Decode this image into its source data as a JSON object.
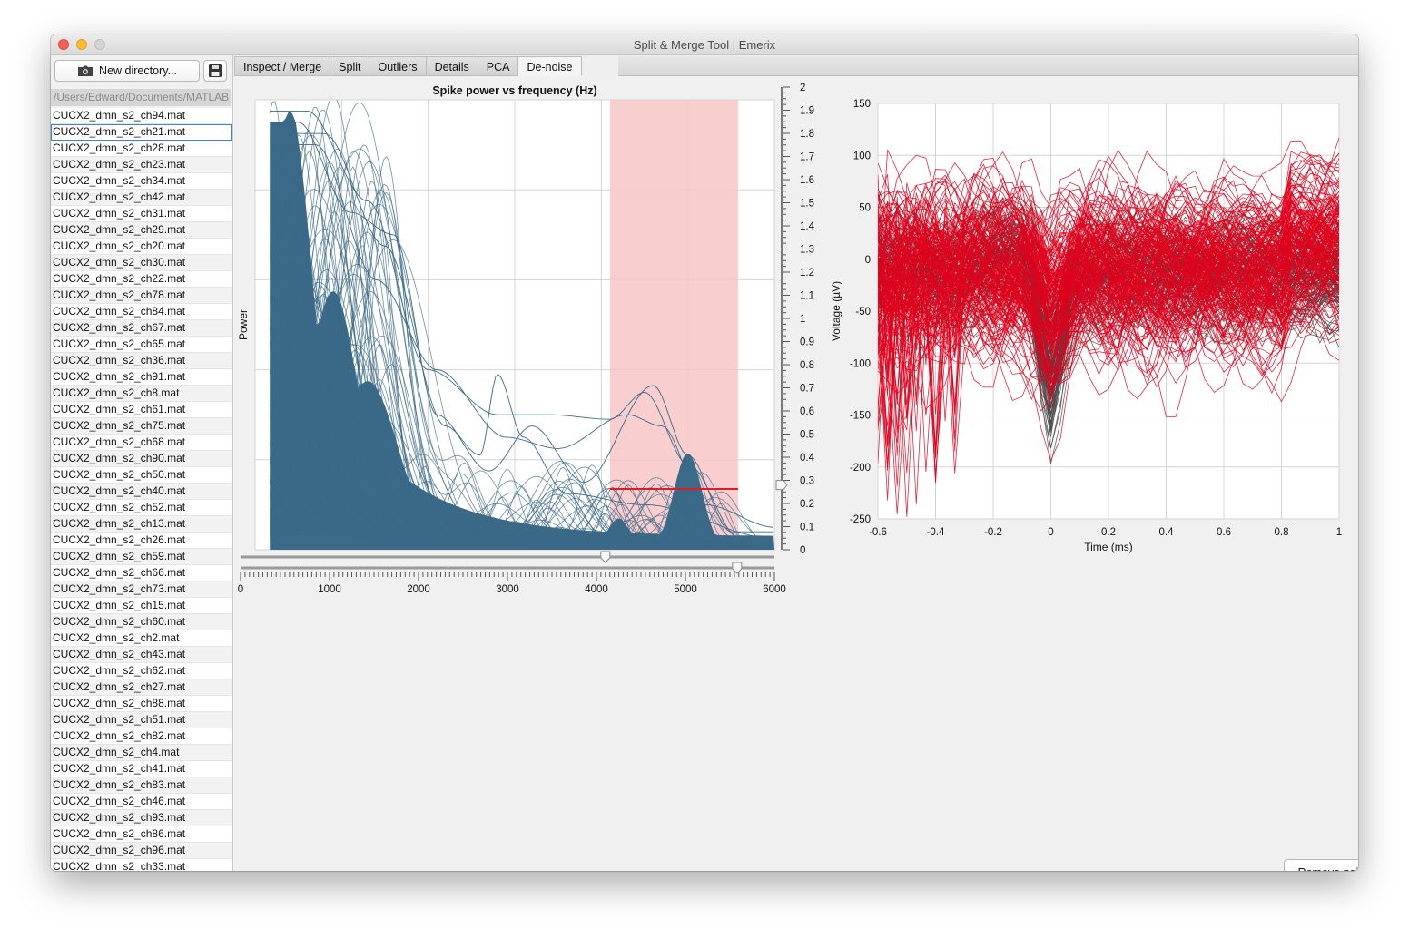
{
  "window": {
    "title": "Split & Merge Tool | Emerix"
  },
  "sidebar": {
    "new_directory_label": "New directory...",
    "save_icon": "floppy-disk-icon",
    "path": "/Users/Edward/Documents/MATLAB",
    "files": [
      "CUCX2_dmn_s2_ch94.mat",
      "CUCX2_dmn_s2_ch21.mat",
      "CUCX2_dmn_s2_ch28.mat",
      "CUCX2_dmn_s2_ch23.mat",
      "CUCX2_dmn_s2_ch34.mat",
      "CUCX2_dmn_s2_ch42.mat",
      "CUCX2_dmn_s2_ch31.mat",
      "CUCX2_dmn_s2_ch29.mat",
      "CUCX2_dmn_s2_ch20.mat",
      "CUCX2_dmn_s2_ch30.mat",
      "CUCX2_dmn_s2_ch22.mat",
      "CUCX2_dmn_s2_ch78.mat",
      "CUCX2_dmn_s2_ch84.mat",
      "CUCX2_dmn_s2_ch67.mat",
      "CUCX2_dmn_s2_ch65.mat",
      "CUCX2_dmn_s2_ch36.mat",
      "CUCX2_dmn_s2_ch91.mat",
      "CUCX2_dmn_s2_ch8.mat",
      "CUCX2_dmn_s2_ch61.mat",
      "CUCX2_dmn_s2_ch75.mat",
      "CUCX2_dmn_s2_ch68.mat",
      "CUCX2_dmn_s2_ch90.mat",
      "CUCX2_dmn_s2_ch50.mat",
      "CUCX2_dmn_s2_ch40.mat",
      "CUCX2_dmn_s2_ch52.mat",
      "CUCX2_dmn_s2_ch13.mat",
      "CUCX2_dmn_s2_ch26.mat",
      "CUCX2_dmn_s2_ch59.mat",
      "CUCX2_dmn_s2_ch66.mat",
      "CUCX2_dmn_s2_ch73.mat",
      "CUCX2_dmn_s2_ch15.mat",
      "CUCX2_dmn_s2_ch60.mat",
      "CUCX2_dmn_s2_ch2.mat",
      "CUCX2_dmn_s2_ch43.mat",
      "CUCX2_dmn_s2_ch62.mat",
      "CUCX2_dmn_s2_ch27.mat",
      "CUCX2_dmn_s2_ch88.mat",
      "CUCX2_dmn_s2_ch51.mat",
      "CUCX2_dmn_s2_ch82.mat",
      "CUCX2_dmn_s2_ch4.mat",
      "CUCX2_dmn_s2_ch41.mat",
      "CUCX2_dmn_s2_ch83.mat",
      "CUCX2_dmn_s2_ch46.mat",
      "CUCX2_dmn_s2_ch93.mat",
      "CUCX2_dmn_s2_ch86.mat",
      "CUCX2_dmn_s2_ch96.mat",
      "CUCX2_dmn_s2_ch33.mat"
    ],
    "selected_index": 1
  },
  "tabs": [
    "Inspect / Merge",
    "Split",
    "Outliers",
    "Details",
    "PCA",
    "De-noise"
  ],
  "active_tab": "De-noise",
  "action_button_label": "Remove noise and re-calculate clusters",
  "colors": {
    "power_fill": "#3b6a88",
    "noise_band": "#f7c6c6",
    "threshold": "#e01b24",
    "kept_wave": "#4a4a4a",
    "noise_wave": "#e0001c"
  },
  "chart_data": [
    {
      "type": "area",
      "title": "Spike power vs frequency (Hz)",
      "xlabel": "",
      "ylabel": "Power",
      "xlim": [
        0,
        6000
      ],
      "ylim": [
        0,
        2
      ],
      "x_ticks": [
        "0",
        "1000",
        "2000",
        "3000",
        "4000",
        "5000",
        "6000"
      ],
      "y_ticks": [
        "0",
        "0.1",
        "0.2",
        "0.3",
        "0.4",
        "0.5",
        "0.6",
        "0.7",
        "0.8",
        "0.9",
        "1",
        "1.1",
        "1.2",
        "1.3",
        "1.4",
        "1.5",
        "1.6",
        "1.7",
        "1.8",
        "1.9",
        "2"
      ],
      "grid": true,
      "noise_band_hz": [
        4100,
        5580
      ],
      "power_threshold": 0.27,
      "frequency_slider_hz": [
        4100,
        5580
      ],
      "power_slider": 0.28
    },
    {
      "type": "line",
      "title": "",
      "xlabel": "Time (ms)",
      "ylabel": "Voltage  (µV)",
      "xlim": [
        -0.6,
        1
      ],
      "ylim": [
        -250,
        150
      ],
      "x_ticks": [
        "-0.6",
        "-0.4",
        "-0.2",
        "0",
        "0.2",
        "0.4",
        "0.6",
        "0.8",
        "1"
      ],
      "y_ticks": [
        "150",
        "100",
        "50",
        "0",
        "-50",
        "-100",
        "-150",
        "-200",
        "-250"
      ],
      "grid": true
    }
  ]
}
